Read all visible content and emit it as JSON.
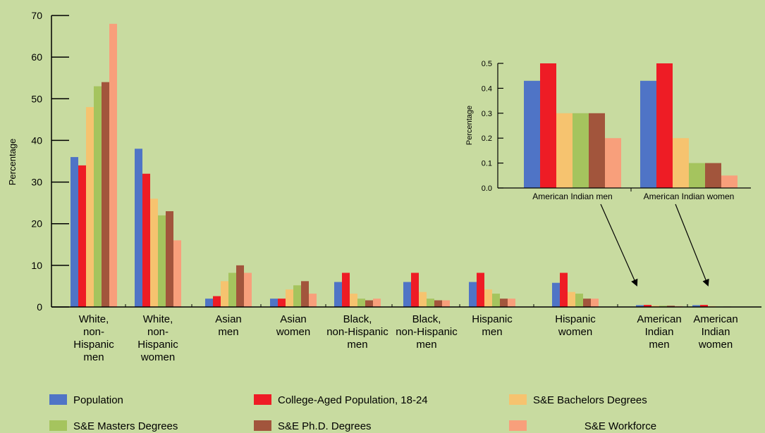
{
  "chart_data": [
    {
      "type": "bar",
      "ylabel": "Percentage",
      "ylim": [
        0,
        70
      ],
      "yticks": [
        0,
        10,
        20,
        30,
        40,
        50,
        60,
        70
      ],
      "categories": [
        [
          "White,",
          "non-",
          "Hispanic",
          "men"
        ],
        [
          "White,",
          "non-",
          "Hispanic",
          "women"
        ],
        [
          "Asian",
          "men"
        ],
        [
          "Asian",
          "women"
        ],
        [
          "Black,",
          "non-Hispanic",
          "men"
        ],
        [
          "Black,",
          "non-Hispanic",
          "men"
        ],
        [
          "Hispanic",
          "men"
        ],
        [
          "Hispanic",
          "women"
        ],
        [
          "American",
          "Indian",
          "men"
        ],
        [
          "American",
          "Indian",
          "women"
        ]
      ],
      "series": [
        {
          "name": "Population",
          "color": "#4f74c6",
          "values": [
            36,
            38,
            2,
            2,
            6,
            6,
            6,
            5.8,
            0.43,
            0.43
          ]
        },
        {
          "name": "College-Aged Population, 18-24",
          "color": "#ee1c25",
          "values": [
            34,
            32,
            2.6,
            2,
            8.2,
            8.2,
            8.2,
            8.2,
            0.5,
            0.5
          ]
        },
        {
          "name": "S&E Bachelors Degrees",
          "color": "#f6c36f",
          "values": [
            48,
            26,
            6.2,
            4.2,
            3.2,
            3.6,
            4.2,
            3.6,
            0.3,
            0.2
          ]
        },
        {
          "name": "S&E Masters Degrees",
          "color": "#a5c45e",
          "values": [
            53,
            22,
            8.2,
            5.2,
            2,
            2,
            3.2,
            3.2,
            0.3,
            0.1
          ]
        },
        {
          "name": "S&E Ph.D. Degrees",
          "color": "#a2553c",
          "values": [
            54,
            23,
            10,
            6.2,
            1.6,
            1.6,
            2,
            2,
            0.3,
            0.1
          ]
        },
        {
          "name": "S&E Workforce",
          "color": "#f89f7b",
          "values": [
            68,
            16,
            8.2,
            3.2,
            2,
            1.6,
            2,
            2,
            0.2,
            0.05
          ]
        }
      ],
      "grid": false,
      "legend": "bottom"
    },
    {
      "type": "bar",
      "ylabel": "Percentage",
      "ylim": [
        0,
        0.5
      ],
      "yticks": [
        "0.0",
        "0.1",
        "0.2",
        "0.3",
        "0.4",
        "0.5"
      ],
      "categories": [
        "American Indian men",
        "American Indian women"
      ],
      "series": [
        {
          "name": "Population",
          "values": [
            0.43,
            0.43
          ]
        },
        {
          "name": "College-Aged Population, 18-24",
          "values": [
            0.5,
            0.5
          ]
        },
        {
          "name": "S&E Bachelors Degrees",
          "values": [
            0.3,
            0.2
          ]
        },
        {
          "name": "S&E Masters Degrees",
          "values": [
            0.3,
            0.1
          ]
        },
        {
          "name": "S&E Ph.D. Degrees",
          "values": [
            0.3,
            0.1
          ]
        },
        {
          "name": "S&E Workforce",
          "values": [
            0.2,
            0.05
          ]
        }
      ],
      "grid": false
    }
  ]
}
